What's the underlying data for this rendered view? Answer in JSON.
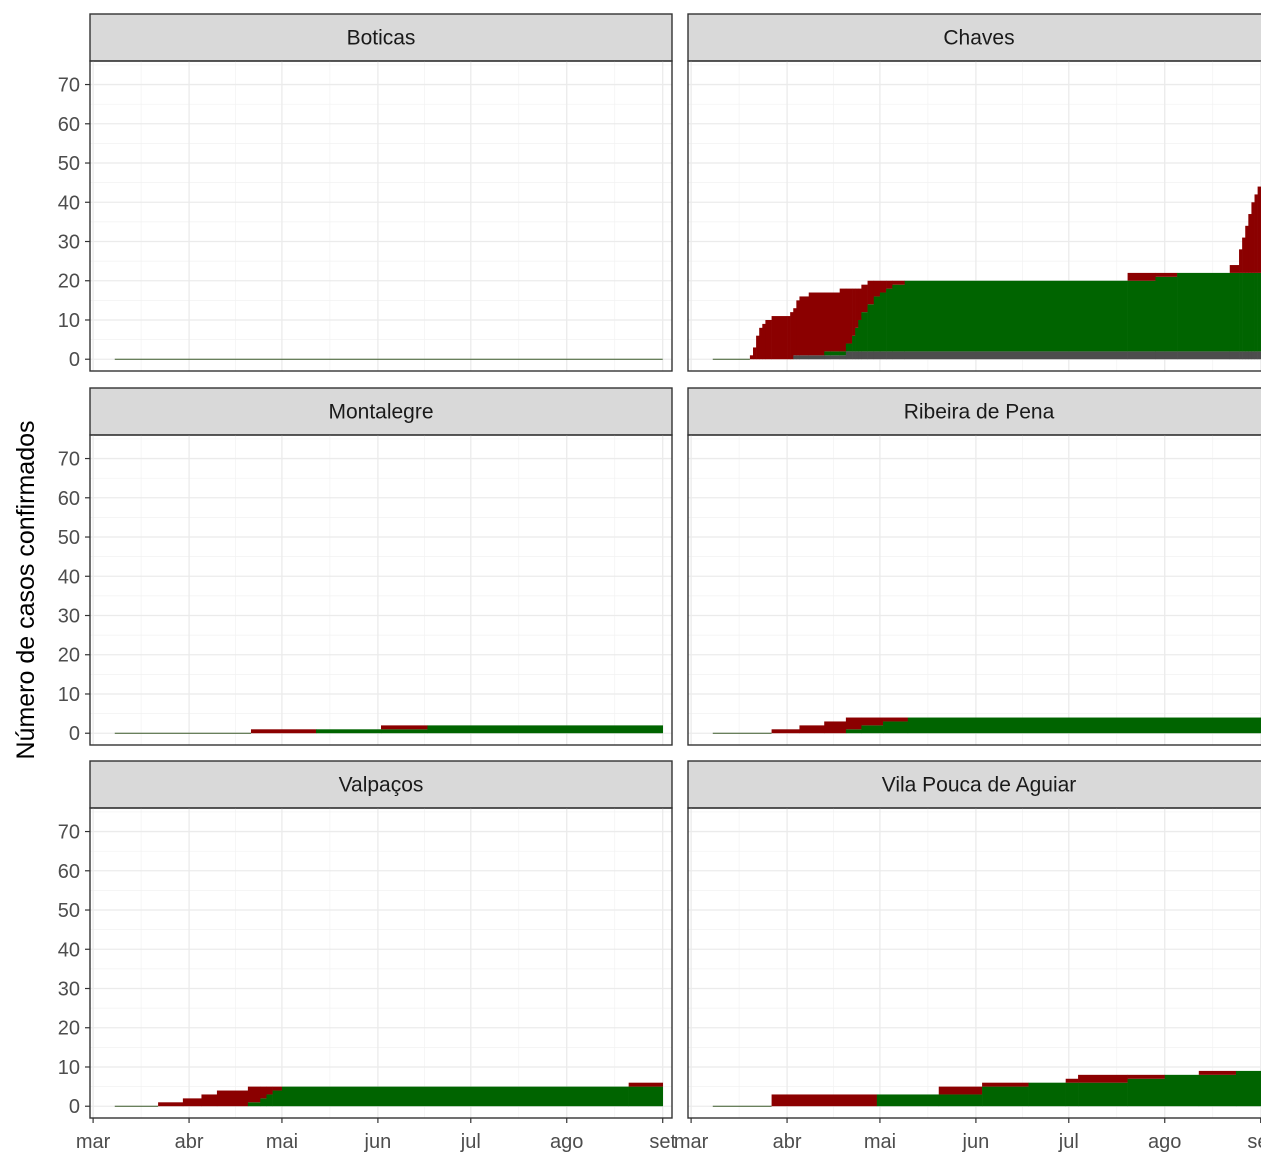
{
  "chart_data": {
    "type": "area",
    "layout": "facet-grid",
    "ylabel": "Número de casos confirmados",
    "xlabel": "",
    "ylim": [
      -3,
      76
    ],
    "yticks": [
      0,
      10,
      20,
      30,
      40,
      50,
      60,
      70
    ],
    "xlim": [
      "2020-02-29",
      "2020-09-04"
    ],
    "xticks": [
      {
        "date": "2020-03-01",
        "label": "mar"
      },
      {
        "date": "2020-04-01",
        "label": "abr"
      },
      {
        "date": "2020-05-01",
        "label": "mai"
      },
      {
        "date": "2020-06-01",
        "label": "jun"
      },
      {
        "date": "2020-07-01",
        "label": "jul"
      },
      {
        "date": "2020-08-01",
        "label": "ago"
      },
      {
        "date": "2020-09-01",
        "label": "set"
      }
    ],
    "colors": {
      "active": "#8b0000",
      "recovered": "#006400",
      "deaths": "#4d4d4d"
    },
    "stacking": [
      "deaths",
      "recovered",
      "active"
    ],
    "panels": [
      {
        "name": "Boticas",
        "steps": [
          [
            "2020-03-08",
            0,
            0,
            0
          ]
        ],
        "end": "2020-09-01"
      },
      {
        "name": "Chaves",
        "steps": [
          [
            "2020-03-08",
            0,
            0,
            0
          ],
          [
            "2020-03-20",
            0,
            0,
            1
          ],
          [
            "2020-03-21",
            0,
            0,
            3
          ],
          [
            "2020-03-22",
            0,
            0,
            6
          ],
          [
            "2020-03-23",
            0,
            0,
            8
          ],
          [
            "2020-03-24",
            0,
            0,
            9
          ],
          [
            "2020-03-25",
            0,
            0,
            10
          ],
          [
            "2020-03-27",
            0,
            0,
            11
          ],
          [
            "2020-04-01",
            0,
            0,
            11
          ],
          [
            "2020-04-02",
            0,
            0,
            12
          ],
          [
            "2020-04-03",
            1,
            0,
            12
          ],
          [
            "2020-04-04",
            1,
            0,
            14
          ],
          [
            "2020-04-05",
            1,
            0,
            15
          ],
          [
            "2020-04-08",
            1,
            0,
            16
          ],
          [
            "2020-04-13",
            1,
            1,
            15
          ],
          [
            "2020-04-15",
            1,
            1,
            15
          ],
          [
            "2020-04-18",
            1,
            1,
            16
          ],
          [
            "2020-04-20",
            2,
            2,
            14
          ],
          [
            "2020-04-22",
            2,
            4,
            12
          ],
          [
            "2020-04-23",
            2,
            6,
            10
          ],
          [
            "2020-04-24",
            2,
            8,
            8
          ],
          [
            "2020-04-25",
            2,
            10,
            7
          ],
          [
            "2020-04-27",
            2,
            12,
            6
          ],
          [
            "2020-04-29",
            2,
            14,
            4
          ],
          [
            "2020-05-01",
            2,
            15,
            3
          ],
          [
            "2020-05-03",
            2,
            16,
            2
          ],
          [
            "2020-05-05",
            2,
            17,
            1
          ],
          [
            "2020-05-09",
            2,
            18,
            0
          ],
          [
            "2020-07-20",
            2,
            18,
            2
          ],
          [
            "2020-07-29",
            2,
            19,
            1
          ],
          [
            "2020-08-05",
            2,
            20,
            0
          ],
          [
            "2020-08-22",
            2,
            20,
            2
          ],
          [
            "2020-08-25",
            2,
            20,
            6
          ],
          [
            "2020-08-26",
            2,
            20,
            9
          ],
          [
            "2020-08-27",
            2,
            20,
            12
          ],
          [
            "2020-08-28",
            2,
            20,
            15
          ],
          [
            "2020-08-29",
            2,
            20,
            18
          ],
          [
            "2020-08-30",
            2,
            20,
            20
          ],
          [
            "2020-08-31",
            2,
            20,
            22
          ]
        ],
        "end": "2020-09-01"
      },
      {
        "name": "Montalegre",
        "steps": [
          [
            "2020-03-08",
            0,
            0,
            0
          ],
          [
            "2020-04-21",
            0,
            0,
            1
          ],
          [
            "2020-05-12",
            0,
            1,
            0
          ],
          [
            "2020-06-02",
            0,
            1,
            1
          ],
          [
            "2020-06-17",
            0,
            2,
            0
          ]
        ],
        "end": "2020-09-01"
      },
      {
        "name": "Ribeira de Pena",
        "steps": [
          [
            "2020-03-08",
            0,
            0,
            0
          ],
          [
            "2020-03-27",
            0,
            0,
            1
          ],
          [
            "2020-04-05",
            0,
            0,
            2
          ],
          [
            "2020-04-13",
            0,
            0,
            3
          ],
          [
            "2020-04-20",
            0,
            1,
            3
          ],
          [
            "2020-04-25",
            0,
            2,
            2
          ],
          [
            "2020-05-02",
            0,
            3,
            1
          ],
          [
            "2020-05-10",
            0,
            4,
            0
          ]
        ],
        "end": "2020-09-01"
      },
      {
        "name": "Valpaços",
        "steps": [
          [
            "2020-03-08",
            0,
            0,
            0
          ],
          [
            "2020-03-22",
            0,
            0,
            1
          ],
          [
            "2020-03-30",
            0,
            0,
            2
          ],
          [
            "2020-04-05",
            0,
            0,
            3
          ],
          [
            "2020-04-10",
            0,
            0,
            4
          ],
          [
            "2020-04-20",
            0,
            1,
            4
          ],
          [
            "2020-04-24",
            0,
            2,
            3
          ],
          [
            "2020-04-26",
            0,
            3,
            2
          ],
          [
            "2020-04-28",
            0,
            4,
            1
          ],
          [
            "2020-05-01",
            0,
            5,
            0
          ],
          [
            "2020-08-21",
            0,
            5,
            1
          ]
        ],
        "end": "2020-09-01"
      },
      {
        "name": "Vila Pouca de Aguiar",
        "steps": [
          [
            "2020-03-08",
            0,
            0,
            0
          ],
          [
            "2020-03-27",
            0,
            0,
            3
          ],
          [
            "2020-04-30",
            0,
            3,
            0
          ],
          [
            "2020-05-20",
            0,
            3,
            2
          ],
          [
            "2020-06-03",
            0,
            5,
            1
          ],
          [
            "2020-06-18",
            0,
            6,
            0
          ],
          [
            "2020-06-30",
            0,
            6,
            1
          ],
          [
            "2020-07-04",
            0,
            6,
            2
          ],
          [
            "2020-07-20",
            0,
            7,
            1
          ],
          [
            "2020-08-01",
            0,
            8,
            0
          ],
          [
            "2020-08-12",
            0,
            8,
            1
          ],
          [
            "2020-08-24",
            0,
            9,
            0
          ]
        ],
        "end": "2020-09-01"
      }
    ]
  }
}
